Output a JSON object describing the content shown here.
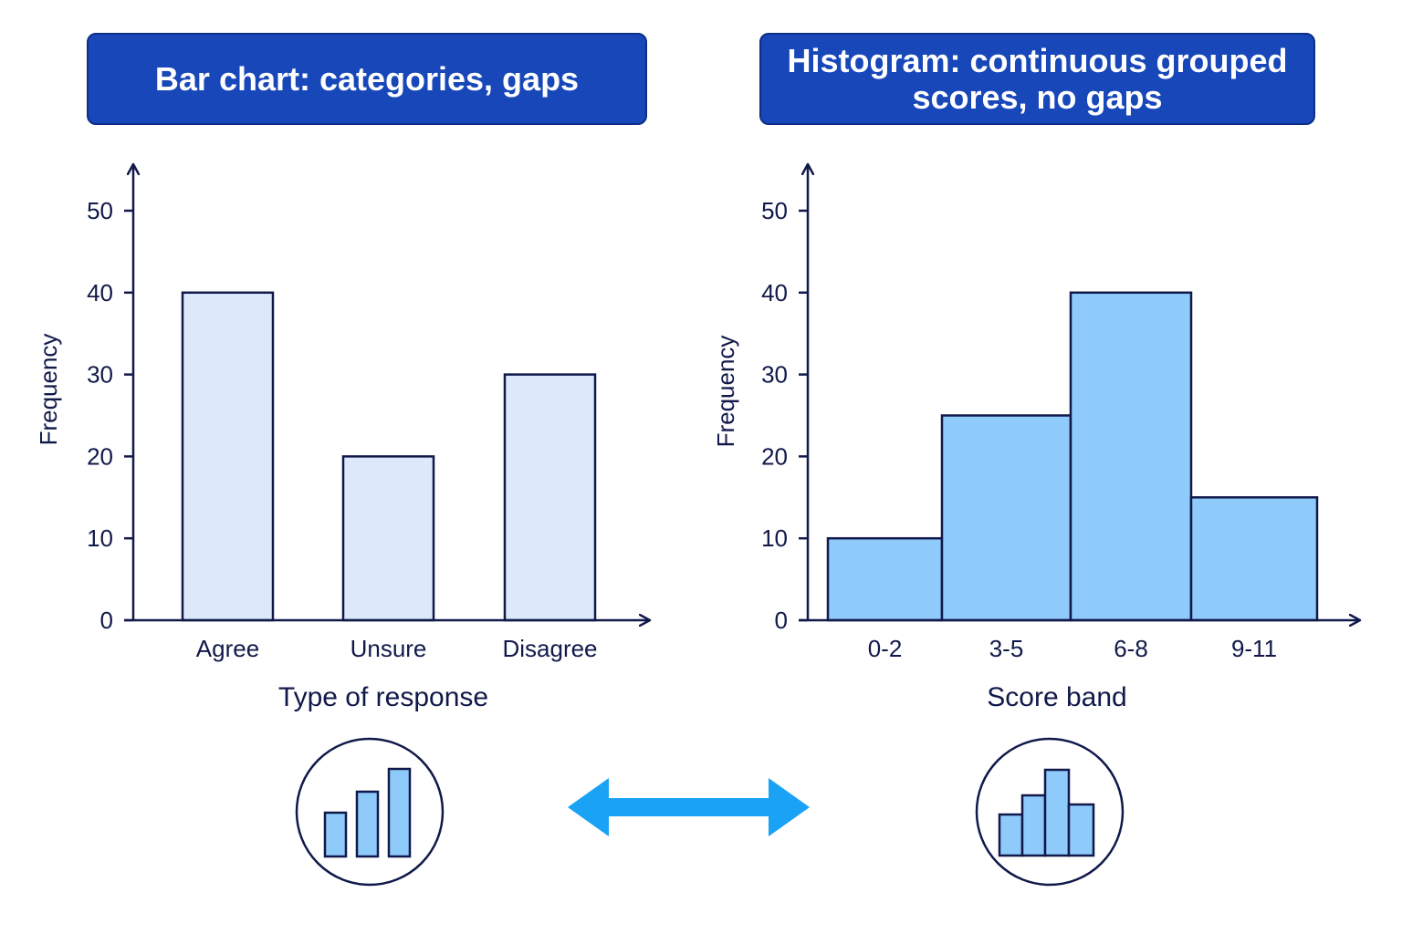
{
  "chart_data": [
    {
      "type": "bar",
      "title": "Bar chart: categories, gaps",
      "categories": [
        "Agree",
        "Unsure",
        "Disagree"
      ],
      "values": [
        40,
        20,
        30
      ],
      "xlabel": "Type of response",
      "ylabel": "Frequency",
      "ylim": [
        0,
        50
      ],
      "yticks": [
        "0",
        "10",
        "20",
        "30",
        "40",
        "50"
      ],
      "bar_color": "#dce9fb",
      "gaps": true
    },
    {
      "type": "bar",
      "title": "Histogram: continuous grouped scores, no gaps",
      "categories": [
        "0-2",
        "3-5",
        "6-8",
        "9-11"
      ],
      "values": [
        10,
        25,
        40,
        15
      ],
      "xlabel": "Score band",
      "ylabel": "Frequency",
      "ylim": [
        0,
        50
      ],
      "yticks": [
        "0",
        "10",
        "20",
        "30",
        "40",
        "50"
      ],
      "bar_color": "#8ecbfb",
      "gaps": false
    }
  ],
  "icons": {
    "left": "bar-chart-icon",
    "middle": "double-arrow-icon",
    "right": "histogram-icon"
  },
  "colors": {
    "banner": "#1747b8",
    "ink": "#11194a",
    "arrow": "#1aa3f5"
  }
}
